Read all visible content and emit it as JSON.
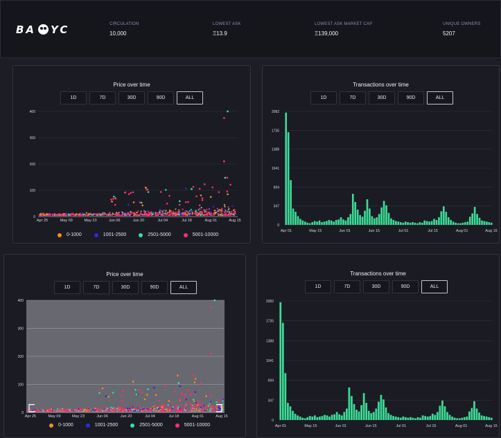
{
  "header": {
    "logo_left": "BA",
    "logo_right": "YC",
    "stats": [
      {
        "label": "CIRCULATION",
        "value": "10,000"
      },
      {
        "label": "LOWEST ASK",
        "value": "Ξ13.9"
      },
      {
        "label": "LOWEST ASK MARKET CAP",
        "value": "Ξ139,000"
      },
      {
        "label": "UNIQUE OWNERS",
        "value": "5207"
      }
    ]
  },
  "time_buttons": [
    "1D",
    "7D",
    "30D",
    "90D",
    "ALL"
  ],
  "active_button": "ALL",
  "colors": {
    "orange": "#f28e1c",
    "blue": "#2b2bd8",
    "teal": "#35e0a0",
    "pink": "#ff2e6e",
    "bar": "#3ddc97"
  },
  "panels": {
    "price_top": {
      "title": "Price over time"
    },
    "tx_top": {
      "title": "Transactions over time"
    },
    "price_bottom": {
      "title": "Price over time"
    },
    "tx_bottom": {
      "title": "Transactions over time"
    }
  },
  "chart_data": [
    {
      "type": "scatter",
      "title": "Price over time",
      "x_ticks": [
        "Apr 25",
        "May 09",
        "May 23",
        "Jun 06",
        "Jun 20",
        "Jul 04",
        "Jul 18",
        "Aug 01",
        "Aug 15"
      ],
      "y_ticks": [
        0,
        100,
        200,
        300,
        400
      ],
      "ylim": [
        0,
        400
      ],
      "legend": [
        "0-1000",
        "1001-2500",
        "2501-5000",
        "5001-10000"
      ],
      "legend_placement": "bottom",
      "notable_points": [
        {
          "x": "Jun 24",
          "y": 110,
          "series": "0-1000"
        },
        {
          "x": "Jul 21",
          "y": 105,
          "series": "2501-5000"
        },
        {
          "x": "Aug 09",
          "y": 375,
          "series": "5001-10000"
        },
        {
          "x": "Aug 11",
          "y": 400,
          "series": "2501-5000"
        },
        {
          "x": "Aug 09",
          "y": 210,
          "series": "5001-10000"
        }
      ]
    },
    {
      "type": "bar",
      "title": "Transactions over time",
      "x_ticks": [
        "Apr 01",
        "May 15",
        "Jun 01",
        "Jun 15",
        "Jul 01",
        "Jul 15",
        "Aug 01",
        "Aug 15"
      ],
      "y_ticks": [
        0,
        347,
        694,
        1041,
        1388,
        1735,
        2082
      ],
      "ylim": [
        0,
        2082
      ],
      "values": [
        2060,
        1700,
        820,
        300,
        240,
        160,
        110,
        80,
        60,
        40,
        30,
        50,
        70,
        60,
        80,
        50,
        60,
        70,
        90,
        80,
        60,
        90,
        100,
        140,
        100,
        80,
        140,
        200,
        570,
        420,
        280,
        180,
        150,
        260,
        470,
        300,
        160,
        120,
        140,
        200,
        320,
        440,
        360,
        220,
        120,
        90,
        70,
        60,
        50,
        40,
        60,
        50,
        40,
        50,
        40,
        30,
        50,
        40,
        80,
        70,
        60,
        70,
        110,
        90,
        140,
        250,
        340,
        240,
        140,
        90,
        60,
        40,
        30,
        30,
        40,
        50,
        60,
        150,
        210,
        330,
        200,
        130,
        80,
        70,
        60,
        50,
        40
      ]
    }
  ]
}
